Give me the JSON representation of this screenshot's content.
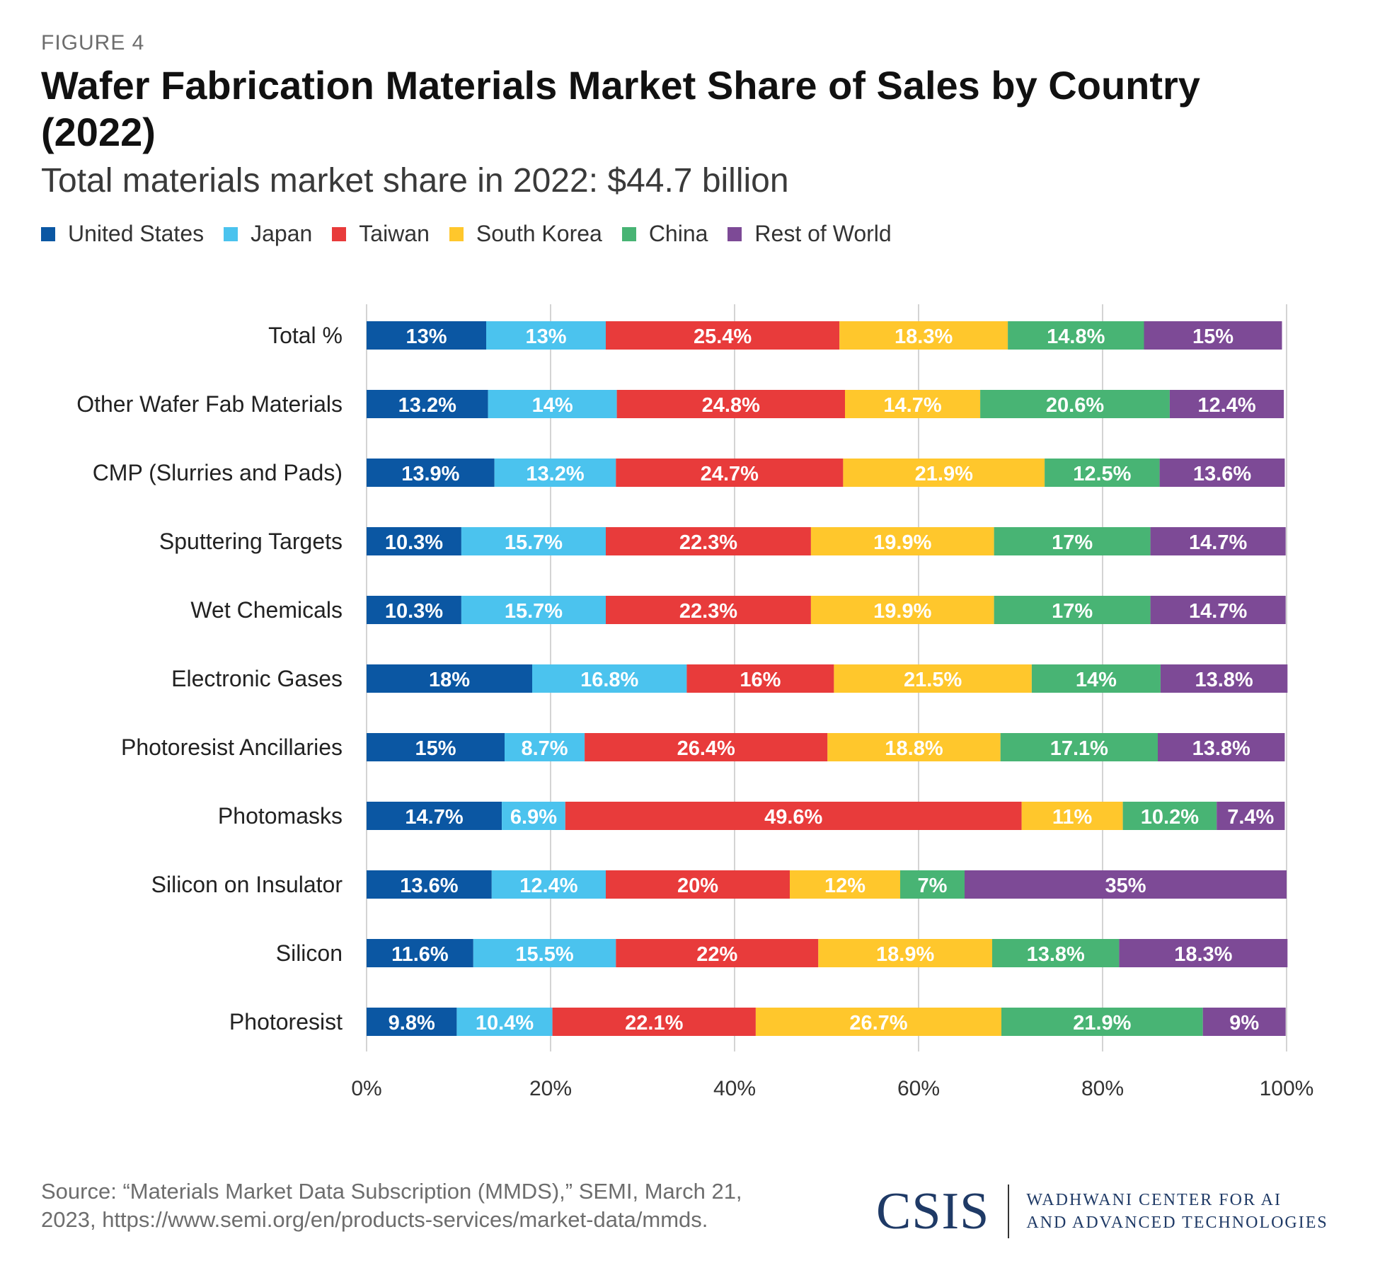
{
  "header": {
    "eyebrow": "FIGURE 4",
    "title": "Wafer Fabrication Materials Market Share of Sales by Country (2022)",
    "subtitle": "Total materials market share in 2022: $44.7 billion"
  },
  "legend": [
    {
      "label": "United States",
      "color": "#0b57a3"
    },
    {
      "label": "Japan",
      "color": "#4bc3ee"
    },
    {
      "label": "Taiwan",
      "color": "#e83b3b"
    },
    {
      "label": "South Korea",
      "color": "#ffc72c"
    },
    {
      "label": "China",
      "color": "#48b474"
    },
    {
      "label": "Rest of World",
      "color": "#7d4a96"
    }
  ],
  "chart_data": {
    "type": "bar",
    "orientation": "horizontal",
    "stacked": true,
    "categories": [
      "Total %",
      "Other Wafer Fab Materials",
      "CMP (Slurries and Pads)",
      "Sputtering Targets",
      "Wet Chemicals",
      "Electronic Gases",
      "Photoresist Ancillaries",
      "Photomasks",
      "Silicon on Insulator",
      "Silicon",
      "Photoresist"
    ],
    "series": [
      {
        "name": "United States",
        "color": "#0b57a3",
        "values": [
          13,
          13.2,
          13.9,
          10.3,
          10.3,
          18,
          15,
          14.7,
          13.6,
          11.6,
          9.8
        ],
        "labels": [
          "13%",
          "13.2%",
          "13.9%",
          "10.3%",
          "10.3%",
          "18%",
          "15%",
          "14.7%",
          "13.6%",
          "11.6%",
          "9.8%"
        ]
      },
      {
        "name": "Japan",
        "color": "#4bc3ee",
        "values": [
          13,
          14,
          13.2,
          15.7,
          15.7,
          16.8,
          8.7,
          6.9,
          12.4,
          15.5,
          10.4
        ],
        "labels": [
          "13%",
          "14%",
          "13.2%",
          "15.7%",
          "15.7%",
          "16.8%",
          "8.7%",
          "6.9%",
          "12.4%",
          "15.5%",
          "10.4%"
        ]
      },
      {
        "name": "Taiwan",
        "color": "#e83b3b",
        "values": [
          25.4,
          24.8,
          24.7,
          22.3,
          22.3,
          16,
          26.4,
          49.6,
          20,
          22,
          22.1
        ],
        "labels": [
          "25.4%",
          "24.8%",
          "24.7%",
          "22.3%",
          "22.3%",
          "16%",
          "26.4%",
          "49.6%",
          "20%",
          "22%",
          "22.1%"
        ]
      },
      {
        "name": "South Korea",
        "color": "#ffc72c",
        "values": [
          18.3,
          14.7,
          21.9,
          19.9,
          19.9,
          21.5,
          18.8,
          11,
          12,
          18.9,
          26.7
        ],
        "labels": [
          "18.3%",
          "14.7%",
          "21.9%",
          "19.9%",
          "19.9%",
          "21.5%",
          "18.8%",
          "11%",
          "12%",
          "18.9%",
          "26.7%"
        ]
      },
      {
        "name": "China",
        "color": "#48b474",
        "values": [
          14.8,
          20.6,
          12.5,
          17,
          17,
          14,
          17.1,
          10.2,
          7,
          13.8,
          21.9
        ],
        "labels": [
          "14.8%",
          "20.6%",
          "12.5%",
          "17%",
          "17%",
          "14%",
          "17.1%",
          "10.2%",
          "7%",
          "13.8%",
          "21.9%"
        ]
      },
      {
        "name": "Rest of World",
        "color": "#7d4a96",
        "values": [
          15,
          12.4,
          13.6,
          14.7,
          14.7,
          13.8,
          13.8,
          7.4,
          35,
          18.3,
          9
        ],
        "labels": [
          "15%",
          "12.4%",
          "13.6%",
          "14.7%",
          "14.7%",
          "13.8%",
          "13.8%",
          "7.4%",
          "35%",
          "18.3%",
          "9%"
        ]
      }
    ],
    "xlim": [
      0,
      100
    ],
    "xticks": [
      0,
      20,
      40,
      60,
      80,
      100
    ],
    "xtick_labels": [
      "0%",
      "20%",
      "40%",
      "60%",
      "80%",
      "100%"
    ],
    "grid": true
  },
  "footer": {
    "source": "Source: “Materials Market Data Subscription (MMDS),” SEMI, March 21, 2023, https://www.semi.org/en/products-services/market-data/mmds.",
    "logo_mark": "CSIS",
    "logo_line1": "WADHWANI CENTER FOR AI",
    "logo_line2": "AND ADVANCED TECHNOLOGIES"
  }
}
